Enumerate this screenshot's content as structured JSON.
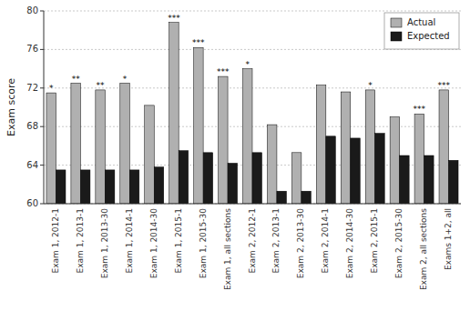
{
  "chart_data": {
    "type": "bar",
    "categories": [
      "Exam 1, 2012-1",
      "Exam 1, 2013-1",
      "Exam 1, 2013-30",
      "Exam 1, 2014-1",
      "Exam 1, 2014-30",
      "Exam 1, 2015-1",
      "Exam 1, 2015-30",
      "Exam 1, all sections",
      "Exam 2, 2012-1",
      "Exam 2, 2013-1",
      "Exam 2, 2013-30",
      "Exam 2, 2014-1",
      "Exam 2, 2014-30",
      "Exam 2, 2015-1",
      "Exam 2, 2015-30",
      "Exam 2, all sections",
      "Exams 1+2, all"
    ],
    "series": [
      {
        "name": "Actual",
        "color": "#b0b0b0",
        "values": [
          71.5,
          72.5,
          71.8,
          72.5,
          70.2,
          78.8,
          76.2,
          73.2,
          74.0,
          68.2,
          65.3,
          72.3,
          71.6,
          71.8,
          69.0,
          69.3,
          71.8
        ]
      },
      {
        "name": "Expected",
        "color": "#1a1a1a",
        "values": [
          63.5,
          63.5,
          63.5,
          63.5,
          63.8,
          65.5,
          65.3,
          64.2,
          65.3,
          61.3,
          61.3,
          67.0,
          66.8,
          67.3,
          65.0,
          65.0,
          64.5
        ]
      }
    ],
    "annotations": [
      "*",
      "**",
      "**",
      "*",
      null,
      "***",
      "***",
      "***",
      "*",
      null,
      null,
      null,
      null,
      "*",
      null,
      "***",
      "***"
    ],
    "ylabel": "Exam score",
    "ylim": [
      60,
      80
    ],
    "yticks": [
      60,
      64,
      68,
      72,
      76,
      80
    ],
    "grid": true,
    "legend": "upper right"
  }
}
